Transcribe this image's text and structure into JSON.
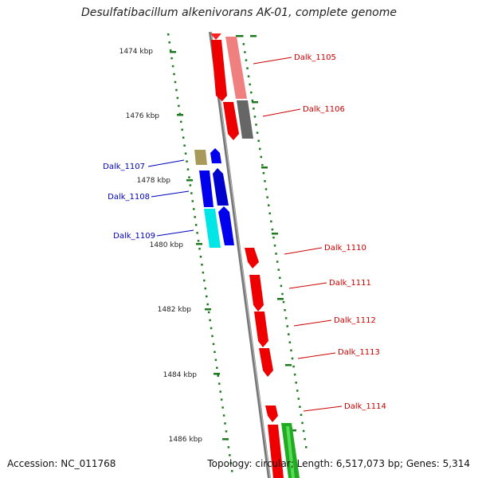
{
  "title": "Desulfatibacillum alkenivorans AK-01, complete genome",
  "footer": {
    "accession": "Accession: NC_011768",
    "summary": "Topology: circular; Length: 6,517,073 bp; Genes: 5,314"
  },
  "colors": {
    "backbone": "#888888",
    "tick": "#1e7a1e",
    "forward_label": "#cc0000",
    "reverse_label": "#0000bb"
  },
  "kbp_labels": [
    "1474 kbp",
    "1476 kbp",
    "1478 kbp",
    "1480 kbp",
    "1482 kbp",
    "1484 kbp",
    "1486 kbp"
  ],
  "genes_labeled": [
    {
      "name": "Dalk_1105",
      "strand": "right"
    },
    {
      "name": "Dalk_1106",
      "strand": "right"
    },
    {
      "name": "Dalk_1107",
      "strand": "left"
    },
    {
      "name": "Dalk_1108",
      "strand": "left"
    },
    {
      "name": "Dalk_1109",
      "strand": "left"
    },
    {
      "name": "Dalk_1110",
      "strand": "right"
    },
    {
      "name": "Dalk_1111",
      "strand": "right"
    },
    {
      "name": "Dalk_1112",
      "strand": "right"
    },
    {
      "name": "Dalk_1113",
      "strand": "right"
    },
    {
      "name": "Dalk_1114",
      "strand": "right"
    }
  ]
}
